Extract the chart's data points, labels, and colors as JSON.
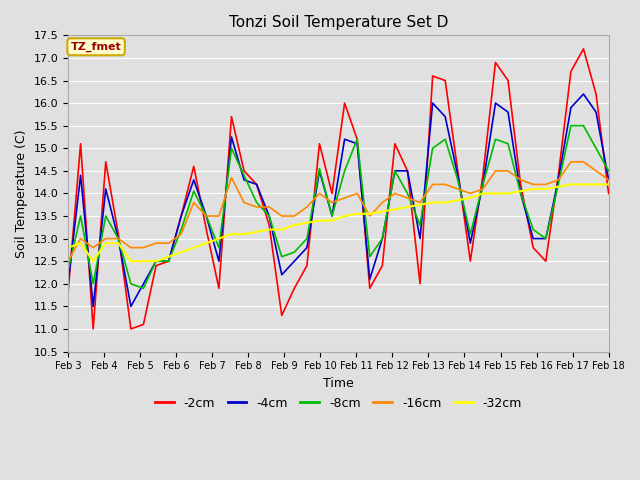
{
  "title": "Tonzi Soil Temperature Set D",
  "xlabel": "Time",
  "ylabel": "Soil Temperature (C)",
  "ylim": [
    10.5,
    17.5
  ],
  "background_color": "#e0e0e0",
  "plot_bg_color": "#e0e0e0",
  "grid_color": "#ffffff",
  "annotation_text": "TZ_fmet",
  "annotation_bg": "#ffffcc",
  "annotation_border": "#ccaa00",
  "annotation_text_color": "#990000",
  "series": {
    "-2cm": {
      "color": "#ff0000",
      "linewidth": 1.2
    },
    "-4cm": {
      "color": "#0000cc",
      "linewidth": 1.2
    },
    "-8cm": {
      "color": "#00bb00",
      "linewidth": 1.2
    },
    "-16cm": {
      "color": "#ff8800",
      "linewidth": 1.2
    },
    "-32cm": {
      "color": "#ffff00",
      "linewidth": 1.5
    }
  },
  "xtick_labels": [
    "Feb 3",
    "Feb 4",
    "Feb 5",
    "Feb 6",
    "Feb 7",
    "Feb 8",
    "Feb 9",
    "Feb 10",
    "Feb 11",
    "Feb 12",
    "Feb 13",
    "Feb 14",
    "Feb 15",
    "Feb 16",
    "Feb 17",
    "Feb 18"
  ],
  "ytick_values": [
    10.5,
    11.0,
    11.5,
    12.0,
    12.5,
    13.0,
    13.5,
    14.0,
    14.5,
    15.0,
    15.5,
    16.0,
    16.5,
    17.0,
    17.5
  ],
  "data_2cm": [
    11.8,
    15.1,
    11.0,
    14.7,
    13.1,
    11.0,
    11.1,
    12.4,
    12.5,
    13.5,
    14.6,
    13.2,
    11.9,
    15.7,
    14.5,
    14.2,
    13.3,
    11.3,
    11.9,
    12.4,
    15.1,
    14.0,
    16.0,
    15.2,
    11.9,
    12.4,
    15.1,
    14.5,
    12.0,
    16.6,
    16.5,
    14.5,
    12.5,
    14.4,
    16.9,
    16.5,
    14.2,
    12.8,
    12.5,
    14.4,
    16.7,
    17.2,
    16.2,
    14.0
  ],
  "data_4cm": [
    12.0,
    14.4,
    11.5,
    14.1,
    13.0,
    11.5,
    12.0,
    12.5,
    12.5,
    13.5,
    14.3,
    13.5,
    12.5,
    15.25,
    14.3,
    14.2,
    13.5,
    12.2,
    12.5,
    12.8,
    14.5,
    13.5,
    15.2,
    15.1,
    12.1,
    13.0,
    14.5,
    14.5,
    13.0,
    16.0,
    15.7,
    14.4,
    12.9,
    14.2,
    16.0,
    15.8,
    14.0,
    13.0,
    13.0,
    14.3,
    15.9,
    16.2,
    15.8,
    14.3
  ],
  "data_8cm": [
    12.3,
    13.5,
    12.0,
    13.5,
    13.0,
    12.0,
    11.9,
    12.5,
    12.5,
    13.2,
    14.05,
    13.5,
    12.8,
    15.0,
    14.4,
    13.8,
    13.5,
    12.6,
    12.7,
    13.0,
    14.55,
    13.5,
    14.5,
    15.2,
    12.6,
    13.0,
    14.5,
    14.0,
    13.3,
    15.0,
    15.2,
    14.3,
    13.1,
    14.2,
    15.2,
    15.1,
    14.0,
    13.2,
    13.0,
    14.2,
    15.5,
    15.5,
    15.0,
    14.5
  ],
  "data_16cm": [
    12.5,
    13.0,
    12.8,
    13.0,
    13.0,
    12.8,
    12.8,
    12.9,
    12.9,
    13.1,
    13.8,
    13.5,
    13.5,
    14.35,
    13.8,
    13.7,
    13.7,
    13.5,
    13.5,
    13.7,
    14.0,
    13.8,
    13.9,
    14.0,
    13.5,
    13.8,
    14.0,
    13.9,
    13.8,
    14.2,
    14.2,
    14.1,
    14.0,
    14.1,
    14.5,
    14.5,
    14.3,
    14.2,
    14.2,
    14.3,
    14.7,
    14.7,
    14.5,
    14.3
  ],
  "data_32cm": [
    12.8,
    12.9,
    12.5,
    12.9,
    12.9,
    12.5,
    12.5,
    12.5,
    12.6,
    12.7,
    12.8,
    12.9,
    13.0,
    13.1,
    13.1,
    13.15,
    13.2,
    13.2,
    13.3,
    13.35,
    13.4,
    13.4,
    13.5,
    13.55,
    13.55,
    13.6,
    13.65,
    13.7,
    13.75,
    13.8,
    13.8,
    13.85,
    13.9,
    14.0,
    14.0,
    14.0,
    14.05,
    14.1,
    14.1,
    14.15,
    14.2,
    14.2,
    14.2,
    14.2
  ]
}
